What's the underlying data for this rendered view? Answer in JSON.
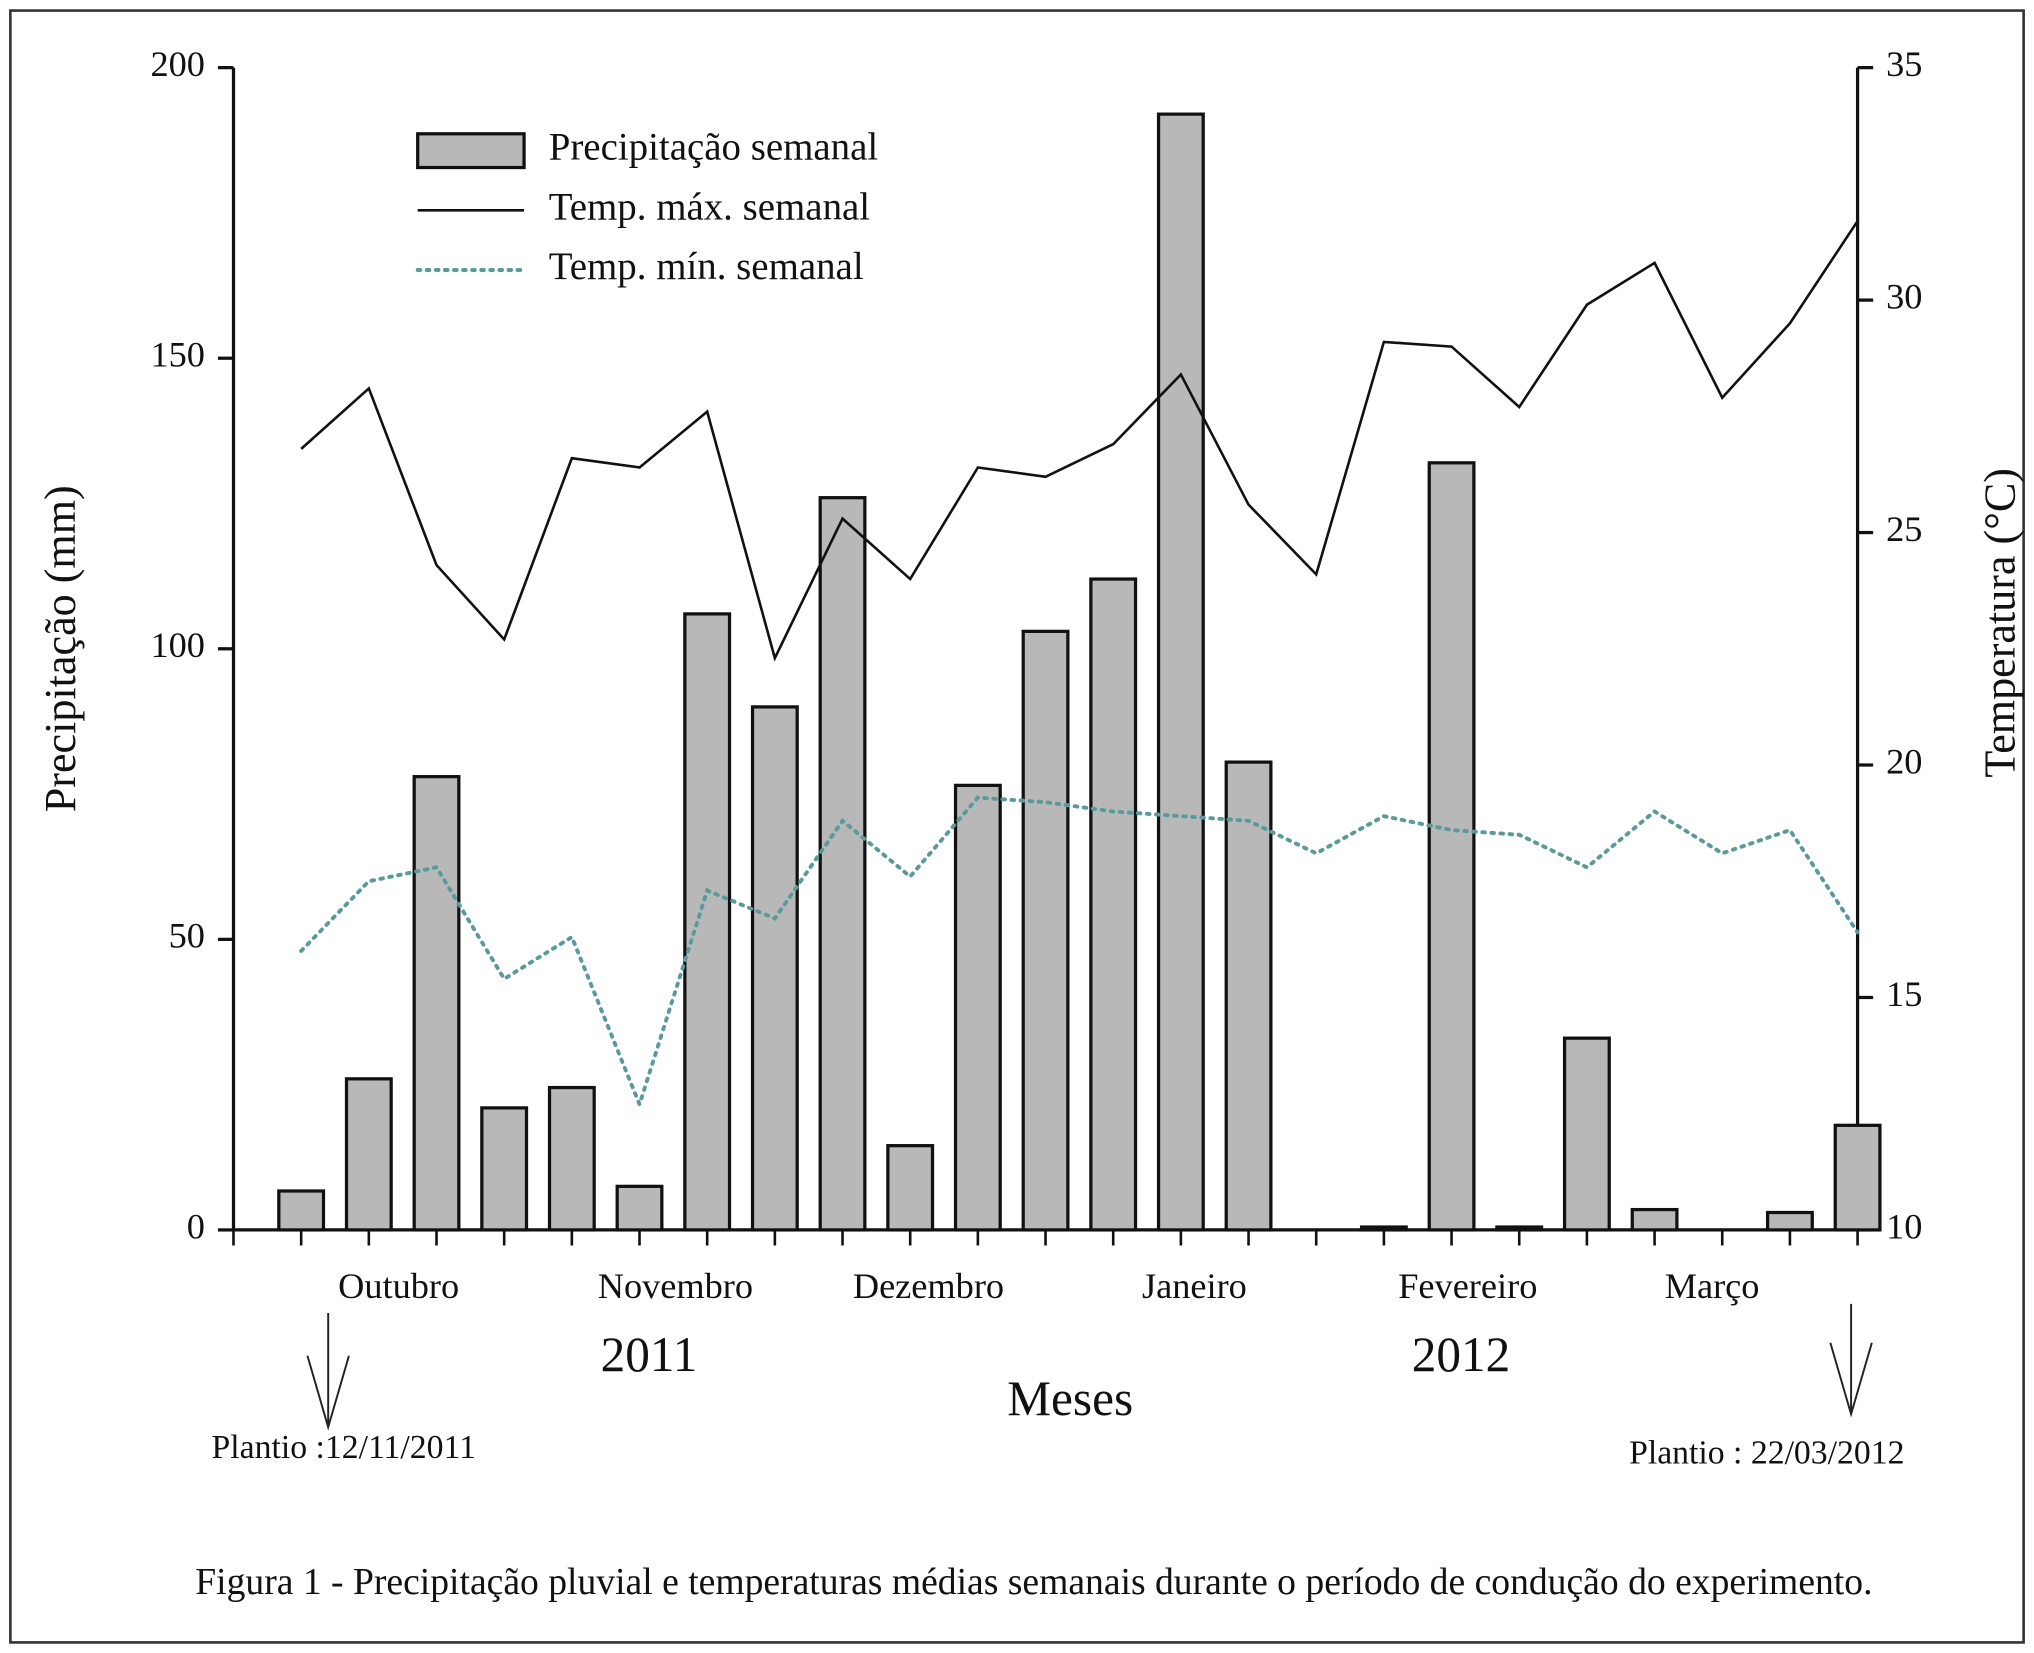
{
  "chart_data": {
    "type": "combo",
    "x_label": "Meses",
    "y_label": "Precipitação (mm)",
    "y2_label": "Temperatura (°C)",
    "caption": "Figura 1 - Precipitação pluvial e temperaturas médias semanais durante o período de condução do experimento.",
    "x": [
      1,
      2,
      3,
      4,
      5,
      6,
      7,
      8,
      9,
      10,
      11,
      12,
      13,
      14,
      15,
      16,
      17,
      18,
      19,
      20,
      21,
      22,
      23,
      24
    ],
    "xlim": [
      0,
      24
    ],
    "xticks": [
      0,
      1,
      2,
      3,
      4,
      5,
      6,
      7,
      8,
      9,
      10,
      11,
      12,
      13,
      14,
      15,
      16,
      17,
      18,
      19,
      20,
      21,
      22,
      23,
      24
    ],
    "ylim": [
      0,
      200
    ],
    "yticks": [
      0,
      50,
      100,
      150,
      200
    ],
    "y2lim": [
      10,
      35
    ],
    "y2ticks": [
      10,
      15,
      20,
      25,
      30,
      35
    ],
    "month_labels": [
      {
        "text": "Outubro",
        "x": 2.44
      },
      {
        "text": "Novembro",
        "x": 6.53
      },
      {
        "text": "Dezembro",
        "x": 10.27
      },
      {
        "text": "Janeiro",
        "x": 14.2
      },
      {
        "text": "Fevereiro",
        "x": 18.24
      },
      {
        "text": "Março",
        "x": 21.85
      }
    ],
    "year_labels": [
      {
        "text": "2011",
        "x": 6.14
      },
      {
        "text": "2012",
        "x": 18.14
      }
    ],
    "planting_notes": [
      "Plantio :12/11/2011",
      "Plantio : 22/03/2012"
    ],
    "series": [
      {
        "name": "Precipitação semanal",
        "type": "bar",
        "color": "#b8b8b8",
        "values": [
          6.7,
          26,
          78,
          21,
          24.5,
          7.5,
          106,
          90,
          126,
          14.5,
          76.5,
          103,
          112,
          192,
          80.5,
          0,
          0.5,
          132,
          0.5,
          33,
          3.5,
          0,
          3,
          18
        ]
      },
      {
        "name": "Temp. máx. semanal",
        "type": "line",
        "axis": "y2",
        "color": "#111111",
        "style": "solid",
        "values": [
          26.8,
          28.1,
          24.3,
          22.7,
          26.6,
          26.4,
          27.6,
          22.3,
          25.3,
          24.0,
          26.4,
          26.2,
          26.9,
          28.4,
          25.6,
          24.1,
          29.1,
          29.0,
          27.7,
          29.9,
          30.8,
          27.9,
          29.5,
          31.7
        ]
      },
      {
        "name": "Temp. mín. semanal",
        "type": "line",
        "axis": "y2",
        "color": "#5a9a9a",
        "style": "dotted",
        "values": [
          16.0,
          17.5,
          17.8,
          15.4,
          16.3,
          12.7,
          17.3,
          16.7,
          18.8,
          17.6,
          19.3,
          19.2,
          19.0,
          18.9,
          18.8,
          18.1,
          18.9,
          18.6,
          18.5,
          17.8,
          19.0,
          18.1,
          18.6,
          16.4
        ]
      }
    ]
  }
}
